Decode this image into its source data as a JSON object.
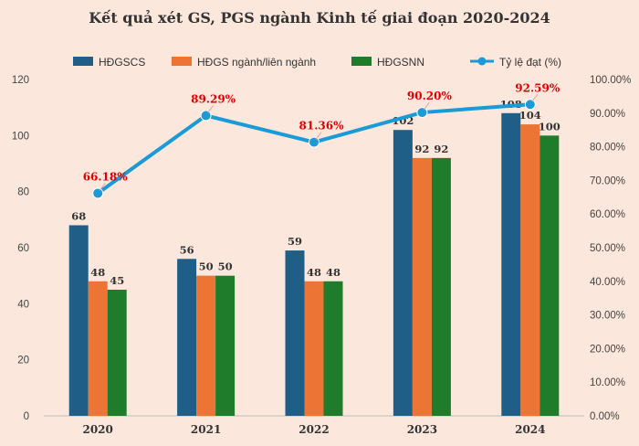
{
  "chart_data": {
    "type": "bar",
    "title": "Kết quả xét GS, PGS ngành Kinh tế giai đoạn 2020-2024",
    "categories": [
      "2020",
      "2021",
      "2022",
      "2023",
      "2024"
    ],
    "series": [
      {
        "name": "HĐGSCS",
        "kind": "bar",
        "color": "#1f5f87",
        "values": [
          68,
          56,
          59,
          102,
          108
        ]
      },
      {
        "name": "HĐGS ngành/liên ngành",
        "kind": "bar",
        "color": "#ec7434",
        "values": [
          48,
          50,
          48,
          92,
          104
        ]
      },
      {
        "name": "HĐGSNN",
        "kind": "bar",
        "color": "#1e7c2a",
        "values": [
          45,
          50,
          48,
          92,
          100
        ]
      },
      {
        "name": "Tỷ lệ đạt (%)",
        "kind": "line",
        "axis": "right",
        "color": "#1a9ad6",
        "values": [
          66.18,
          89.29,
          81.36,
          90.2,
          92.59
        ]
      }
    ],
    "bar_labels": [
      [
        "68",
        "56",
        "59",
        "102",
        "108"
      ],
      [
        "48",
        "50",
        "48",
        "92",
        "104"
      ],
      [
        "45",
        "50",
        "48",
        "92",
        "100"
      ]
    ],
    "line_labels": [
      "66.18%",
      "89.29%",
      "81.36%",
      "90.20%",
      "92.59%"
    ],
    "ylim": [
      0,
      120
    ],
    "yticks": [
      "0",
      "20",
      "40",
      "60",
      "80",
      "100",
      "120"
    ],
    "y2lim": [
      0,
      100
    ],
    "y2ticks": [
      "0.00%",
      "10.00%",
      "20.00%",
      "30.00%",
      "40.00%",
      "50.00%",
      "60.00%",
      "70.00%",
      "80.00%",
      "90.00%",
      "100.00%"
    ],
    "line_label_color": "#e00000",
    "legend_position": "top",
    "grid": false
  }
}
